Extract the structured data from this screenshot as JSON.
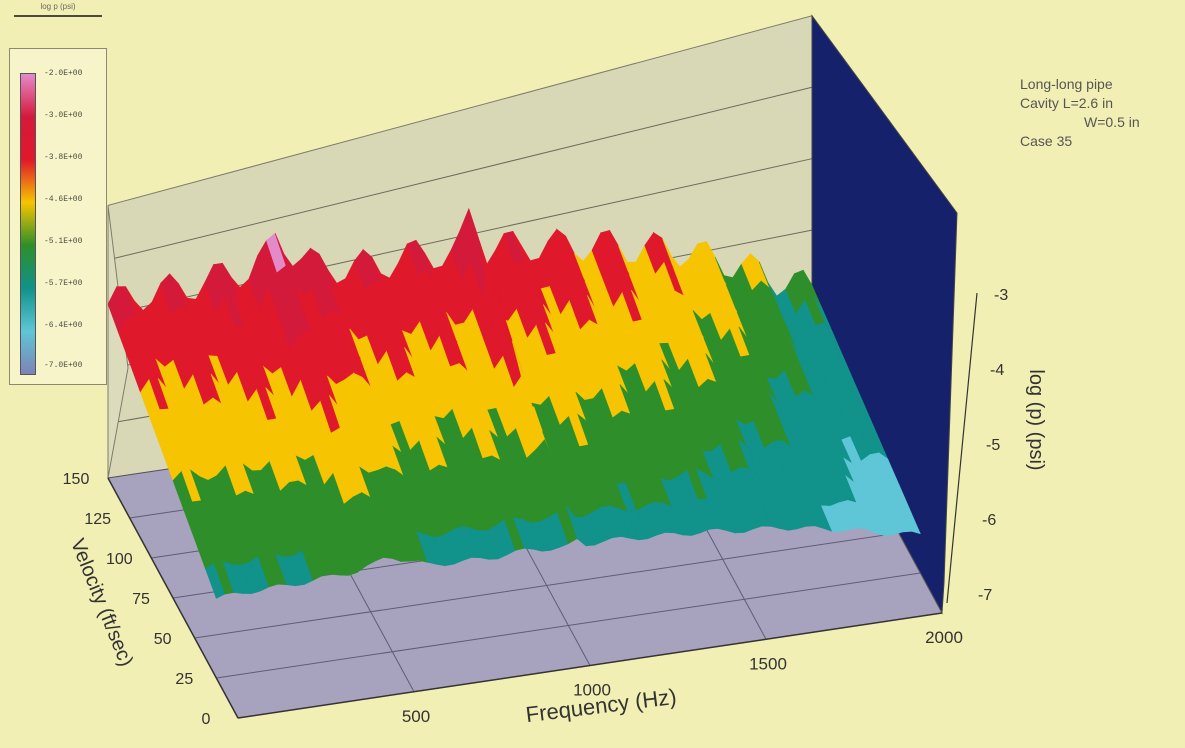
{
  "chart_data": {
    "type": "surface",
    "legend": {
      "title": "log p (psi)",
      "labels": [
        "-2.0E+00",
        "-3.0E+00",
        "-3.8E+00",
        "-4.6E+00",
        "-5.1E+00",
        "-5.7E+00",
        "-6.4E+00",
        "-7.0E+00"
      ],
      "colors": [
        "#e58ac9",
        "#d41a3a",
        "#e0182b",
        "#f6c400",
        "#2e8f2a",
        "#11928a",
        "#5ec6d6",
        "#7d83b6"
      ]
    },
    "annotation": [
      "Long-long pipe",
      "Cavity L=2.6 in",
      "W=0.5 in",
      "Case 35"
    ],
    "x_axis": {
      "label": "Frequency (Hz)",
      "ticks": [
        "500",
        "1000",
        "1500",
        "2000"
      ],
      "range": [
        0,
        2000
      ]
    },
    "y_axis": {
      "label": "Velocity (ft/sec)",
      "ticks": [
        "0",
        "25",
        "50",
        "75",
        "100",
        "125",
        "150"
      ],
      "range": [
        0,
        150
      ]
    },
    "z_axis": {
      "label": "log (p)  (psi)",
      "ticks": [
        "-3",
        "-4",
        "-5",
        "-6",
        "-7"
      ],
      "range": [
        -7,
        -2
      ]
    },
    "surface": {
      "frequency_hz": [
        0,
        100,
        200,
        300,
        400,
        500,
        600,
        700,
        800,
        900,
        1000,
        1100,
        1200,
        1300,
        1400,
        1500,
        1600,
        1700,
        1800,
        1900,
        2000
      ],
      "velocity_ftps": [
        0,
        25,
        50,
        75,
        100,
        125,
        150
      ],
      "log_p_at_150_ftps": [
        -3.3,
        -3.2,
        -3.2,
        -3.1,
        -3.0,
        -2.6,
        -3.2,
        -3.3,
        -3.3,
        -3.2,
        -3.4,
        -3.3,
        -3.4,
        -3.5,
        -3.6,
        -3.8,
        -3.9,
        -4.2,
        -4.5,
        -4.9,
        -5.2
      ],
      "spectral_peaks_hz": [
        480,
        1020
      ],
      "peak_log_p": -2.4
    }
  }
}
